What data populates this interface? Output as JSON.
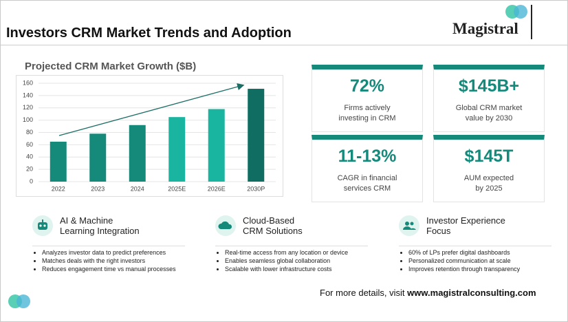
{
  "header": {
    "title": "Investors CRM Market Trends and Adoption",
    "logo": "Magistral"
  },
  "chart_data": {
    "type": "bar",
    "title": "Projected CRM Market Growth ($B)",
    "categories": [
      "2022",
      "2023",
      "2024",
      "2025E",
      "2026E",
      "2030P"
    ],
    "values": [
      65,
      78,
      92,
      105,
      118,
      151
    ],
    "colors": [
      "#15897a",
      "#15897a",
      "#15897a",
      "#1ab5a0",
      "#1ab5a0",
      "#0f6e61"
    ],
    "ylim": [
      0,
      160
    ],
    "yticks": [
      0,
      20,
      40,
      60,
      80,
      100,
      120,
      140,
      160
    ],
    "grid": true
  },
  "stats": [
    {
      "value": "72%",
      "label": [
        "Firms actively",
        "investing in CRM"
      ]
    },
    {
      "value": "$145B+",
      "label": [
        "Global CRM market",
        "value by 2030"
      ]
    },
    {
      "value": "11-13%",
      "label": [
        "CAGR in financial",
        "services CRM"
      ]
    },
    {
      "value": "$145T",
      "label": [
        "AUM expected",
        "by 2025"
      ]
    }
  ],
  "sections": [
    {
      "heading": [
        "AI & Machine",
        "Learning Integration"
      ],
      "bullets": [
        "Analyzes investor data to predict preferences",
        "Matches deals with the right investors",
        "Reduces engagement time vs manual processes"
      ]
    },
    {
      "heading": [
        "Cloud-Based",
        "CRM Solutions"
      ],
      "bullets": [
        "Real-time access from any location or device",
        "Enables seamless global collaboration",
        "Scalable with lower infrastructure costs"
      ]
    },
    {
      "heading": [
        "Investor Experience",
        "Focus"
      ],
      "bullets": [
        "60% of LPs prefer digital dashboards",
        "Personalized communication at scale",
        "Improves retention through transparency"
      ]
    }
  ],
  "footer": {
    "text": "For more details, visit",
    "link": "www.magistralconsulting.com"
  }
}
